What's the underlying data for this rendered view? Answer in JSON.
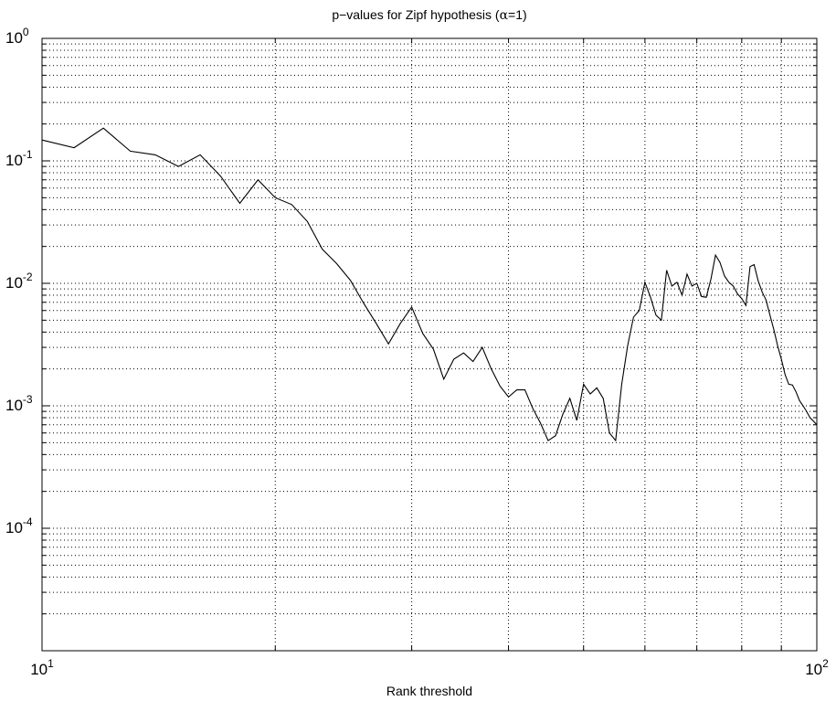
{
  "chart_data": {
    "type": "line",
    "title_prefix": "p−values for Zipf hypothesis (",
    "title_alpha": "α",
    "title_suffix": "=1)",
    "xlabel": "Rank threshold",
    "ylabel": "",
    "x_scale": "log",
    "y_scale": "log",
    "xlim": [
      10,
      100
    ],
    "ylim": [
      1e-05,
      1
    ],
    "grid": true,
    "x_ticks": [
      {
        "base": "10",
        "exp": "1",
        "value": 10
      },
      {
        "base": "10",
        "exp": "2",
        "value": 100
      }
    ],
    "y_ticks": [
      {
        "base": "10",
        "exp": "0",
        "value": 1
      },
      {
        "base": "10",
        "exp": "-1",
        "value": 0.1
      },
      {
        "base": "10",
        "exp": "-2",
        "value": 0.01
      },
      {
        "base": "10",
        "exp": "-3",
        "value": 0.001
      },
      {
        "base": "10",
        "exp": "-4",
        "value": 0.0001
      }
    ],
    "line_color": "#000000",
    "series": [
      {
        "x": [
          10,
          11,
          12,
          13,
          14,
          15,
          16,
          17,
          18,
          19,
          20,
          21,
          22,
          23,
          24,
          25,
          26,
          27,
          28,
          29,
          30,
          31,
          32,
          33,
          34,
          35,
          36,
          37,
          38,
          39,
          40,
          41,
          42,
          43,
          44,
          45,
          46,
          47,
          48,
          49,
          50,
          51,
          52,
          53,
          54,
          55,
          56,
          57,
          58,
          59,
          60,
          61,
          62,
          63,
          64,
          65,
          66,
          67,
          68,
          69,
          70,
          71,
          72,
          73,
          74,
          75,
          76,
          77,
          78,
          79,
          80,
          81,
          82,
          83,
          84,
          85,
          86,
          87,
          88,
          89,
          90,
          91,
          92,
          93,
          94,
          95,
          96,
          97,
          98,
          99,
          100
        ],
        "y": [
          0.148,
          0.128,
          0.185,
          0.12,
          0.112,
          0.09,
          0.112,
          0.075,
          0.045,
          0.07,
          0.05,
          0.044,
          0.032,
          0.019,
          0.0145,
          0.0106,
          0.0069,
          0.0047,
          0.0032,
          0.0047,
          0.0064,
          0.0039,
          0.0029,
          0.00165,
          0.0024,
          0.0027,
          0.0023,
          0.003,
          0.002,
          0.00145,
          0.00118,
          0.00135,
          0.00135,
          0.00095,
          0.00072,
          0.00052,
          0.00057,
          0.00085,
          0.00115,
          0.00076,
          0.0015,
          0.00125,
          0.0014,
          0.00115,
          0.0006,
          0.00052,
          0.0015,
          0.0031,
          0.0053,
          0.006,
          0.0102,
          0.0077,
          0.0055,
          0.005,
          0.0128,
          0.0095,
          0.0102,
          0.008,
          0.0119,
          0.0095,
          0.01,
          0.0078,
          0.0077,
          0.0108,
          0.017,
          0.0148,
          0.0115,
          0.0102,
          0.0095,
          0.0082,
          0.0075,
          0.0066,
          0.0137,
          0.0142,
          0.0105,
          0.0085,
          0.0073,
          0.0055,
          0.0042,
          0.0031,
          0.0024,
          0.0018,
          0.0015,
          0.00148,
          0.0013,
          0.0011,
          0.001,
          0.0009,
          0.0008,
          0.00075,
          0.0007
        ]
      }
    ]
  }
}
